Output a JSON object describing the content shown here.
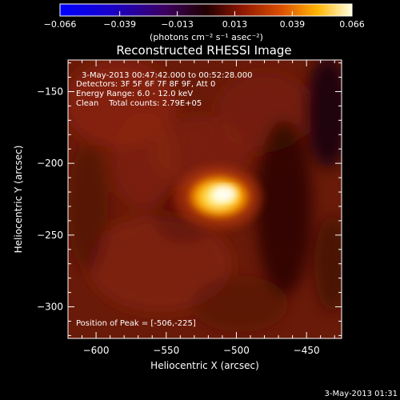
{
  "chart_data": {
    "type": "heatmap",
    "title": "Reconstructed RHESSI Image",
    "xlabel": "Heliocentric X (arcsec)",
    "ylabel": "Heliocentric Y (arcsec)",
    "xlim": [
      -620,
      -425
    ],
    "ylim": [
      -322,
      -128
    ],
    "x_ticks": [
      -600,
      -550,
      -500,
      -450
    ],
    "y_ticks": [
      -150,
      -200,
      -250,
      -300
    ],
    "colorbar": {
      "min": -0.066,
      "max": 0.066,
      "ticks": [
        "-0.066",
        "-0.039",
        "-0.013",
        "0.013",
        "0.039",
        "0.066"
      ],
      "unit_label": "(photons cm⁻² s⁻¹ asec⁻²)"
    },
    "peak": {
      "x": -506,
      "y": -225
    },
    "annotations": {
      "time_range": "3-May-2013 00:47:42.000 to 00:52:28.000",
      "detectors": "Detectors: 3F 5F 6F 7F 8F 9F, Att 0",
      "energy": "Energy Range: 6.0 - 12.0 keV",
      "method_counts": "Clean    Total counts: 2.79E+05",
      "peak_text": "Position of Peak = [-506,-225]"
    },
    "timestamp": "3-May-2013 01:31"
  }
}
